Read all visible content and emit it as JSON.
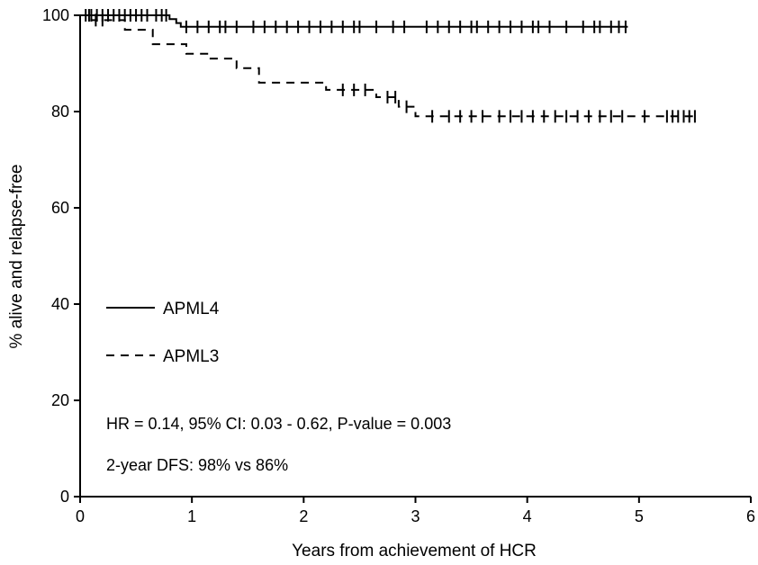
{
  "chart_data": {
    "type": "line",
    "title": "",
    "xlabel": "Years from achievement of HCR",
    "ylabel": "% alive and relapse-free",
    "xlim": [
      0,
      6
    ],
    "ylim": [
      0,
      100
    ],
    "xticks": [
      0,
      1,
      2,
      3,
      4,
      5,
      6
    ],
    "yticks": [
      0,
      20,
      40,
      60,
      80,
      100
    ],
    "grid": false,
    "legend_position": "left-middle",
    "annotations": [
      "HR = 0.14, 95% CI: 0.03 - 0.62, P-value = 0.003",
      "2-year DFS: 98% vs 86%"
    ],
    "series": [
      {
        "name": "APML4",
        "line_style": "solid",
        "color": "#000000",
        "steps": [
          [
            0,
            100
          ],
          [
            0.8,
            100
          ],
          [
            0.8,
            99.2
          ],
          [
            0.86,
            99.2
          ],
          [
            0.86,
            98.4
          ],
          [
            0.9,
            98.4
          ],
          [
            0.9,
            97.6
          ],
          [
            4.9,
            97.6
          ]
        ],
        "censored": [
          0.05,
          0.1,
          0.15,
          0.2,
          0.25,
          0.3,
          0.35,
          0.4,
          0.45,
          0.5,
          0.55,
          0.6,
          0.68,
          0.73,
          0.77,
          0.95,
          1.05,
          1.15,
          1.25,
          1.3,
          1.4,
          1.55,
          1.65,
          1.75,
          1.85,
          1.95,
          2.05,
          2.15,
          2.25,
          2.35,
          2.45,
          2.5,
          2.65,
          2.8,
          2.9,
          3.1,
          3.2,
          3.3,
          3.4,
          3.5,
          3.55,
          3.65,
          3.75,
          3.85,
          3.95,
          4.05,
          4.1,
          4.2,
          4.35,
          4.5,
          4.6,
          4.65,
          4.75,
          4.82,
          4.88
        ]
      },
      {
        "name": "APML3",
        "line_style": "dashed",
        "color": "#000000",
        "steps": [
          [
            0,
            100
          ],
          [
            0.1,
            100
          ],
          [
            0.1,
            99
          ],
          [
            0.4,
            99
          ],
          [
            0.4,
            97
          ],
          [
            0.65,
            97
          ],
          [
            0.65,
            94
          ],
          [
            0.95,
            94
          ],
          [
            0.95,
            92
          ],
          [
            1.15,
            92
          ],
          [
            1.15,
            91
          ],
          [
            1.4,
            91
          ],
          [
            1.4,
            89
          ],
          [
            1.6,
            89
          ],
          [
            1.6,
            86
          ],
          [
            2.2,
            86
          ],
          [
            2.2,
            84.5
          ],
          [
            2.65,
            84.5
          ],
          [
            2.65,
            83
          ],
          [
            2.85,
            83
          ],
          [
            2.85,
            81
          ],
          [
            3.0,
            81
          ],
          [
            3.0,
            79
          ],
          [
            5.5,
            79
          ]
        ],
        "censored": [
          0.08,
          0.14,
          0.2,
          2.35,
          2.45,
          2.55,
          2.75,
          2.82,
          2.92,
          3.15,
          3.3,
          3.4,
          3.5,
          3.6,
          3.75,
          3.85,
          3.95,
          4.05,
          4.15,
          4.25,
          4.35,
          4.45,
          4.55,
          4.65,
          4.75,
          4.85,
          5.05,
          5.25,
          5.3,
          5.35,
          5.4,
          5.45,
          5.5
        ]
      }
    ]
  }
}
